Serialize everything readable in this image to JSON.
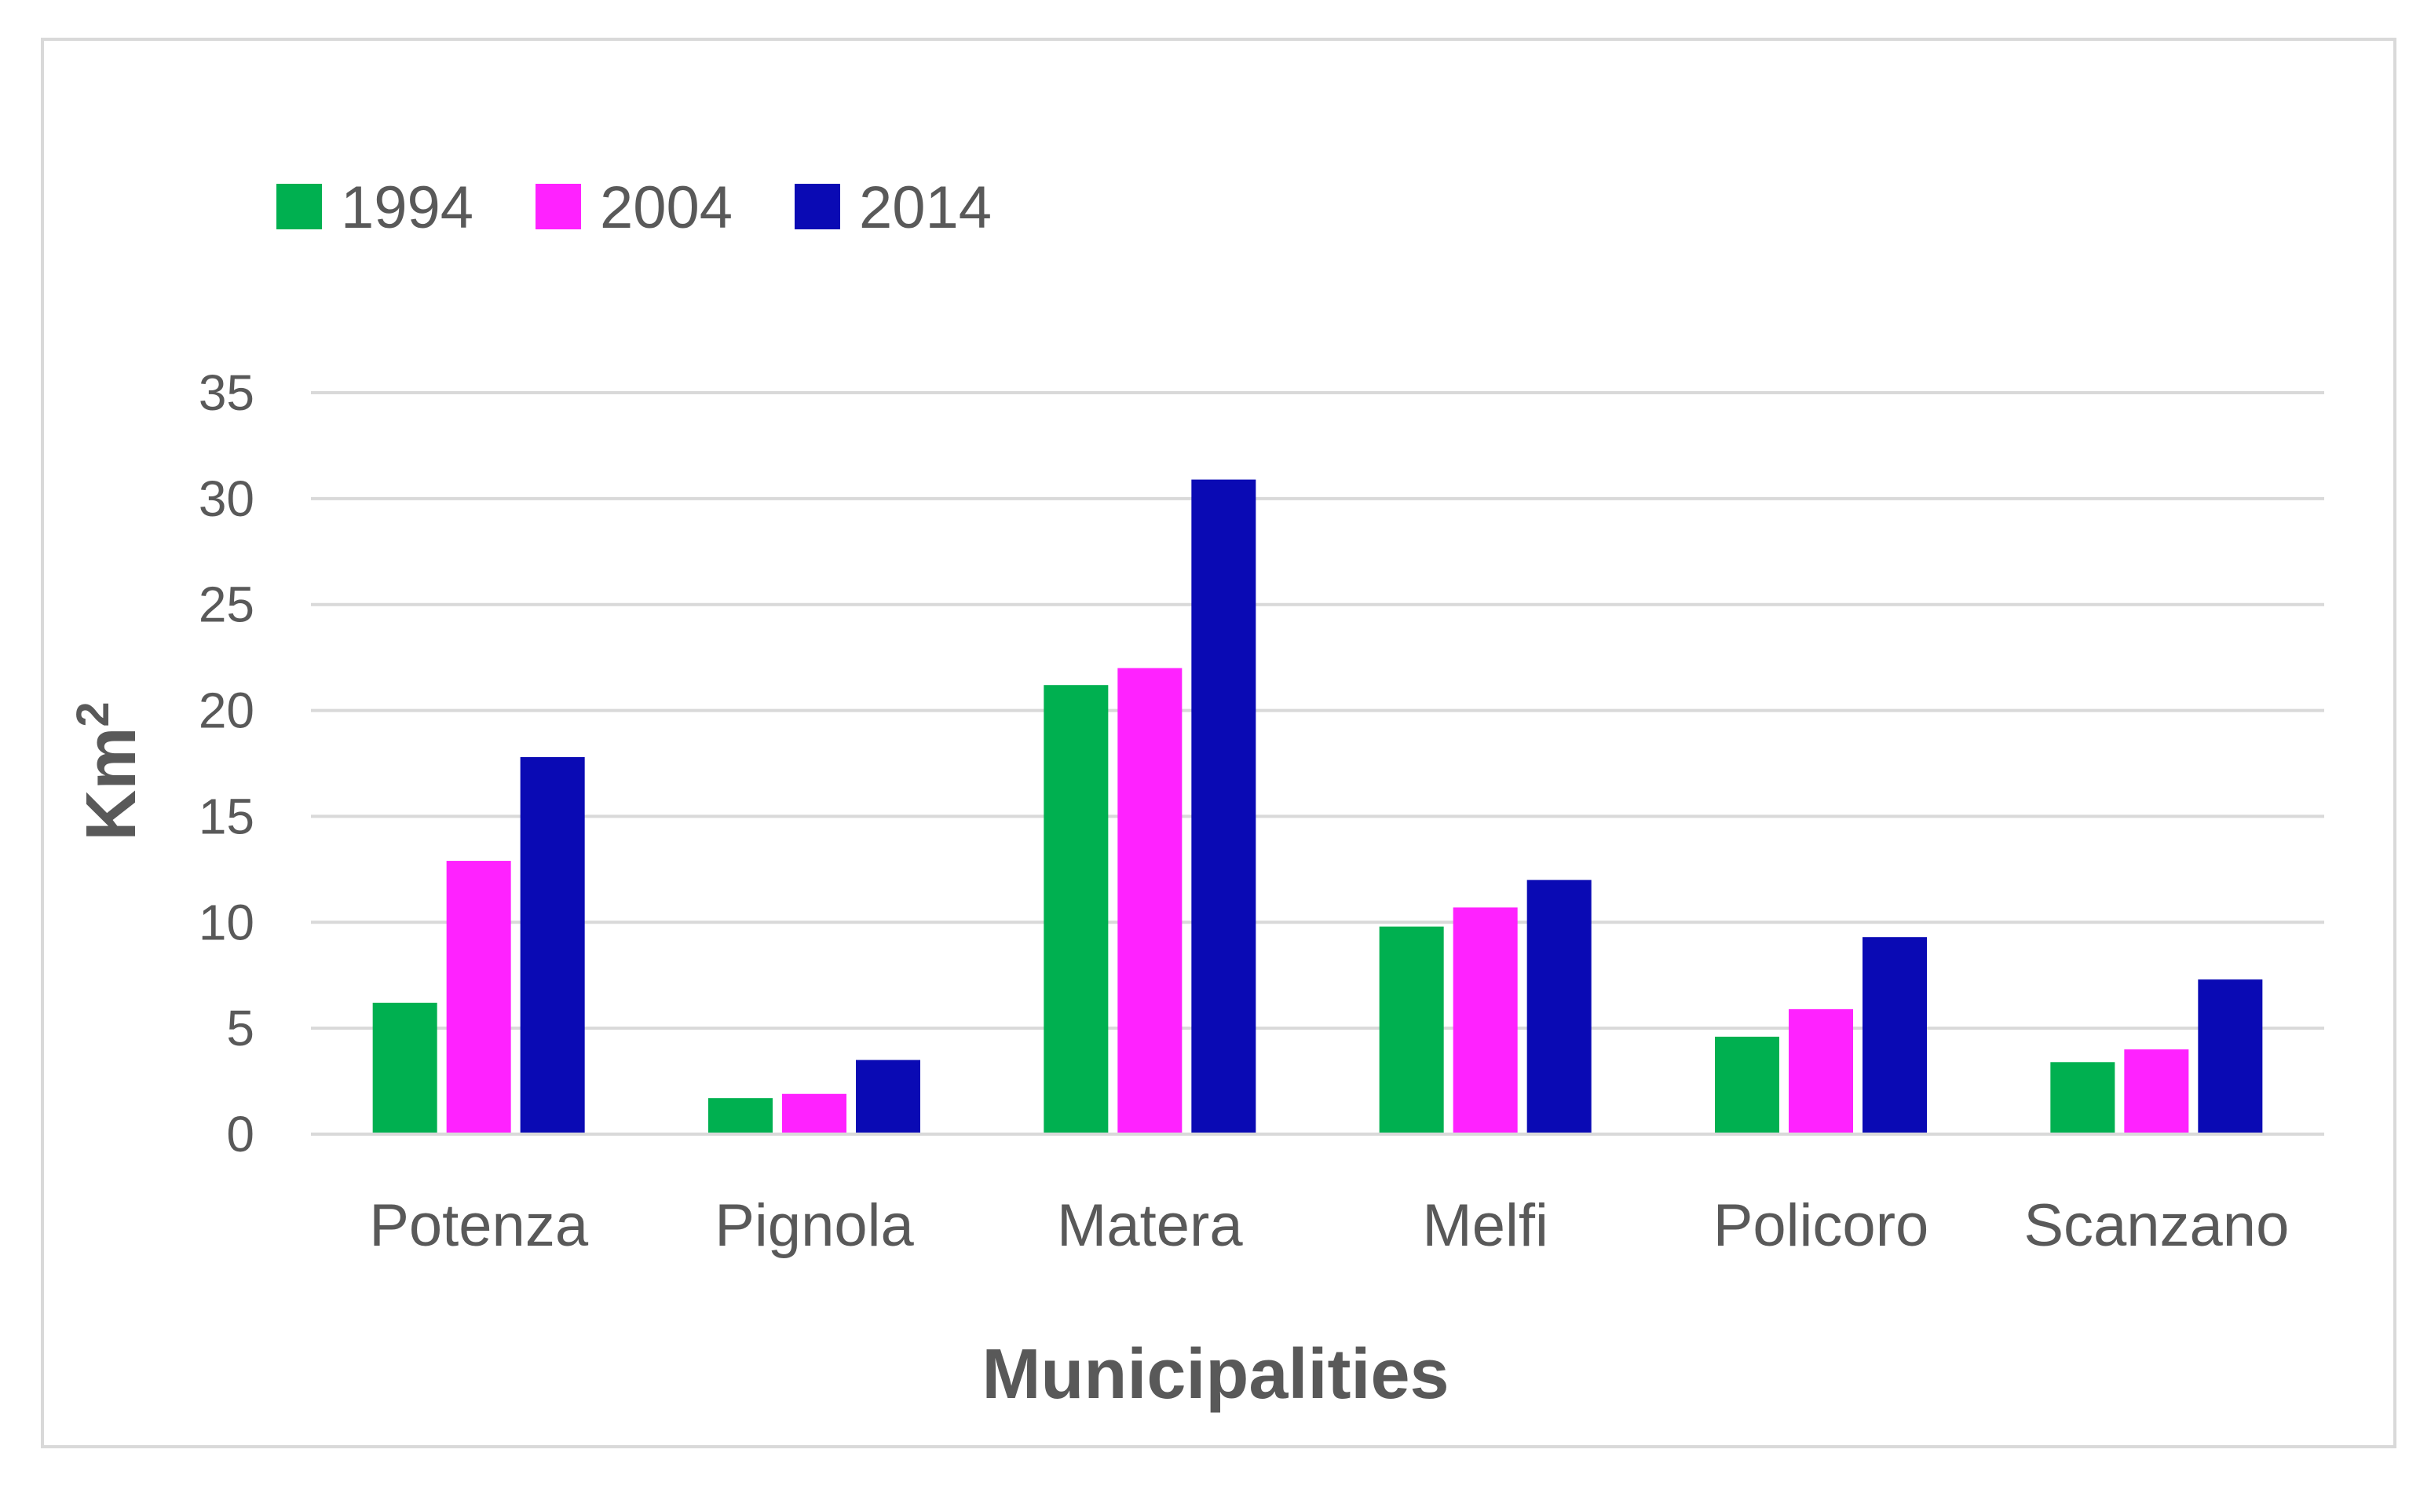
{
  "chart_data": {
    "type": "bar",
    "title": "",
    "xlabel": "Municipalities",
    "ylabel": "Km",
    "ylabel_superscript": "2",
    "categories": [
      "Potenza",
      "Pignola",
      "Matera",
      "Melfi",
      "Policoro",
      "Scanzano"
    ],
    "series": [
      {
        "name": "1994",
        "color": "#00b050",
        "values": [
          6.2,
          1.7,
          21.2,
          9.8,
          4.6,
          3.4
        ]
      },
      {
        "name": "2004",
        "color": "#ff22ff",
        "values": [
          12.9,
          1.9,
          22.0,
          10.7,
          5.9,
          4.0
        ]
      },
      {
        "name": "2014",
        "color": "#0a0ab4",
        "values": [
          17.8,
          3.5,
          30.9,
          12.0,
          9.3,
          7.3
        ]
      }
    ],
    "ylim": [
      0,
      35
    ],
    "yticks": [
      0,
      5,
      10,
      15,
      20,
      25,
      30,
      35
    ],
    "grid": true,
    "legend_position": "top-left"
  }
}
